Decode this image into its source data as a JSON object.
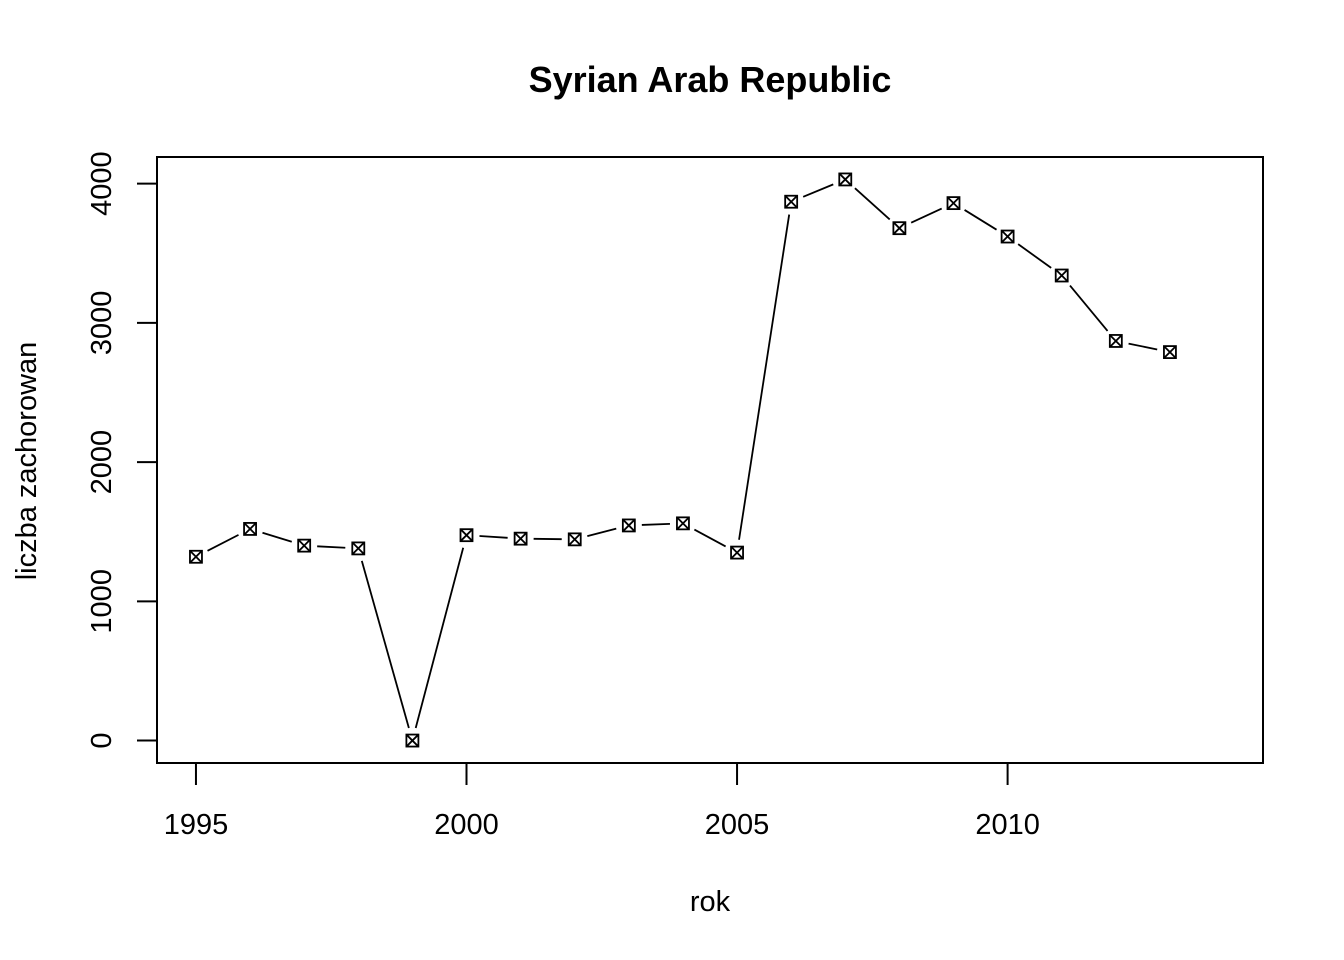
{
  "chart_data": {
    "type": "line",
    "title": "Syrian Arab Republic",
    "xlabel": "rok",
    "ylabel": "liczba zachorowan",
    "x": [
      1995,
      1996,
      1997,
      1998,
      1999,
      2000,
      2001,
      2002,
      2003,
      2004,
      2005,
      2006,
      2007,
      2008,
      2009,
      2010,
      2011,
      2012,
      2013
    ],
    "series": [
      {
        "values": [
          1320,
          1520,
          1400,
          1380,
          0,
          1475,
          1450,
          1445,
          1545,
          1560,
          1350,
          3870,
          4030,
          3680,
          3860,
          3620,
          3340,
          2870,
          2790
        ]
      }
    ],
    "xlim": [
      1994.28,
      2014.72
    ],
    "ylim": [
      -161.2,
      4191.2
    ],
    "x_ticks": [
      "1995",
      "2000",
      "2005",
      "2010"
    ],
    "y_ticks": [
      "0",
      "1000",
      "2000",
      "3000",
      "4000"
    ],
    "marker": "crossed-box",
    "line_color": "#000000",
    "grid": false,
    "legend": "none"
  }
}
